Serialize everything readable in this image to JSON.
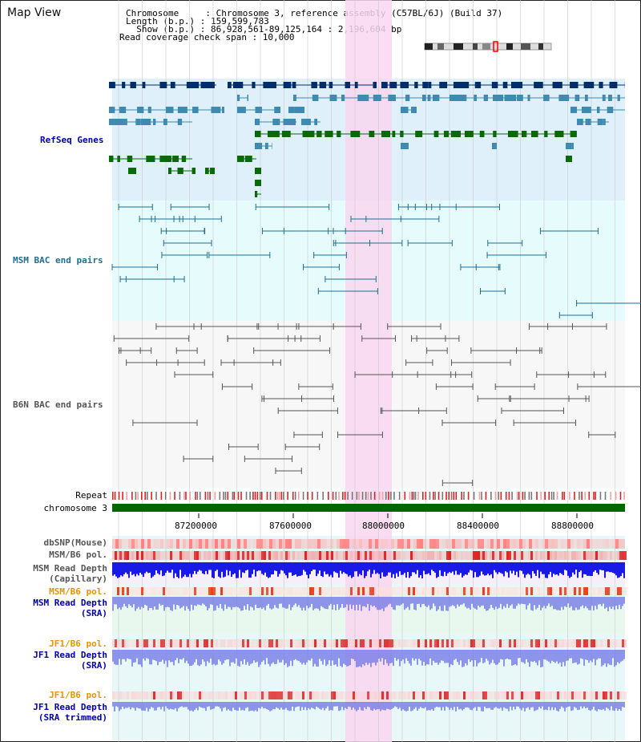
{
  "title": "Map View",
  "info": {
    "chromosome": "Chromosome     : Chromosome 3, reference assembly (C57BL/6J) (Build 37)",
    "length": "Length (b.p.) : 159,599,783",
    "show": "  Show (b.p.) : 86,928,561-89,125,164 : 2,196,604 bp",
    "coverage": "Read coverage check span : 10,000"
  },
  "tracks": {
    "refseq": "RefSeq Genes",
    "msm_bac": "MSM BAC end pairs",
    "b6n_bac": "B6N BAC end pairs",
    "repeat": "Repeat",
    "chromosome": "chromosome 3",
    "dbsnp": "dbSNP(Mouse)",
    "msm_b6_pol_1": "MSM/B6 pol.",
    "msm_depth_cap_1": "MSM Read Depth",
    "msm_depth_cap_2": "(Capillary)",
    "msm_b6_pol_2": "MSM/B6 pol.",
    "msm_depth_sra_1": "MSM Read Depth",
    "msm_depth_sra_2": "(SRA)",
    "jf1_pol_1": "JF1/B6 pol.",
    "jf1_depth_sra_1": "JF1 Read Depth",
    "jf1_depth_sra_2": "(SRA)",
    "jf1_pol_2": "JF1/B6 pol.",
    "jf1_depth_trim_1": "JF1 Read Depth",
    "jf1_depth_trim_2": "(SRA trimmed)"
  },
  "axis": {
    "ticks": [
      "87200000",
      "87600000",
      "88000000",
      "88400000",
      "88800000"
    ]
  },
  "colors": {
    "refseq_bg": "#dff0fa",
    "msm_bac_bg": "#e6fbfb",
    "b6n_bac_bg": "#f7f7f7",
    "highlight": "#f9d7f0",
    "gene_dark": "#002e6b",
    "gene_mid": "#3f8ab0",
    "gene_green": "#0a6a0a",
    "msm_line": "#1e6f8f",
    "b6n_line": "#555555",
    "chromosome_bar": "#006600",
    "depth_blue": "#1a1ae6",
    "depth_light": "#6f74e6",
    "pol_red": "#f06a6a"
  }
}
